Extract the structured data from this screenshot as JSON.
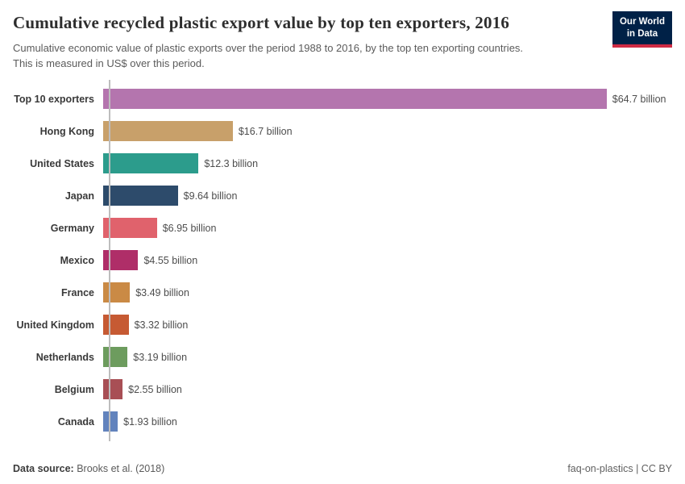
{
  "header": {
    "title": "Cumulative recycled plastic export value by top ten exporters, 2016",
    "subtitle_line1": "Cumulative economic value of plastic exports over the period 1988 to 2016, by the top ten exporting countries.",
    "subtitle_line2": "This is measured in US$ over this period.",
    "logo": {
      "line1": "Our World",
      "line2": "in Data",
      "bg_color": "#002147",
      "accent_color": "#cf2b44"
    }
  },
  "chart_data": {
    "type": "bar",
    "orientation": "horizontal",
    "title": "Cumulative recycled plastic export value by top ten exporters, 2016",
    "unit": "US$ billion",
    "xlim": [
      0,
      64.7
    ],
    "grid": false,
    "legend": false,
    "categories": [
      "Top 10 exporters",
      "Hong Kong",
      "United States",
      "Japan",
      "Germany",
      "Mexico",
      "France",
      "United Kingdom",
      "Netherlands",
      "Belgium",
      "Canada"
    ],
    "values": [
      64.7,
      16.7,
      12.3,
      9.64,
      6.95,
      4.55,
      3.49,
      3.32,
      3.19,
      2.55,
      1.93
    ],
    "value_labels": [
      "$64.7 billion",
      "$16.7 billion",
      "$12.3 billion",
      "$9.64 billion",
      "$6.95 billion",
      "$4.55 billion",
      "$3.49 billion",
      "$3.32 billion",
      "$3.19 billion",
      "$2.55 billion",
      "$1.93 billion"
    ],
    "colors": [
      "#b475ae",
      "#c8a06a",
      "#2c9c8c",
      "#2d4b6b",
      "#e0626c",
      "#af2e68",
      "#ca8a45",
      "#c65a33",
      "#6d9c5e",
      "#a84f55",
      "#6283bd"
    ],
    "axis_line_color": "#bdbdbd"
  },
  "footer": {
    "source_label": "Data source:",
    "source_value": "Brooks et al. (2018)",
    "credit": "faq-on-plastics | CC BY"
  }
}
